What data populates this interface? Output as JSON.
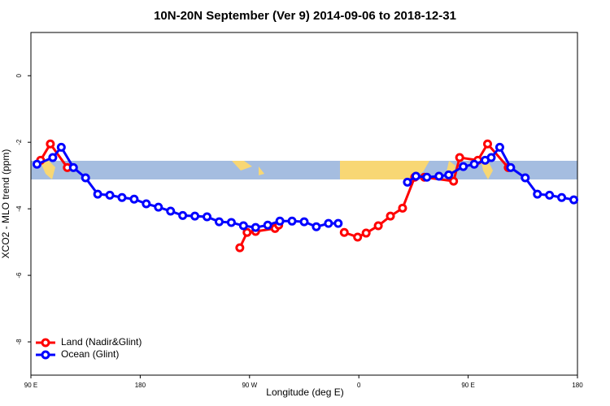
{
  "chart_data": {
    "type": "line",
    "title": "10N-20N September (Ver 9)   2014-09-06 to 2018-12-31",
    "x_label": "Longitude (deg E)",
    "y_label": "XCO2 - MLO trend (ppm)",
    "xlim": [
      90,
      540
    ],
    "xticks": [
      {
        "value": 90,
        "label": "90 E"
      },
      {
        "value": 180,
        "label": "180"
      },
      {
        "value": 270,
        "label": "90 W"
      },
      {
        "value": 360,
        "label": "0"
      },
      {
        "value": 450,
        "label": "90 E"
      },
      {
        "value": 540,
        "label": "180"
      }
    ],
    "ylim": [
      -9,
      1.3
    ],
    "yticks": [
      0,
      -2,
      -4,
      -6,
      -8
    ],
    "legend": "bottom-left",
    "series": [
      {
        "name": "Land (Nadir&Glint)",
        "color": "#ff0000",
        "x": [
          98,
          106,
          120,
          null,
          262,
          268,
          275,
          291,
          294,
          null,
          348,
          359,
          366,
          376,
          386,
          396,
          406,
          414,
          438,
          443,
          458,
          466,
          483
        ],
        "values": [
          -2.54,
          -2.05,
          -2.76,
          null,
          -5.17,
          -4.71,
          -4.68,
          -4.59,
          -4.49,
          null,
          -4.71,
          -4.85,
          -4.73,
          -4.51,
          -4.22,
          -3.98,
          -3.05,
          -3.05,
          -3.17,
          -2.46,
          -2.54,
          -2.05,
          -2.76
        ]
      },
      {
        "name": "Ocean (Glint)",
        "color": "#0000ff",
        "x": [
          95,
          108,
          115,
          125,
          135,
          145,
          155,
          165,
          175,
          185,
          195,
          205,
          215,
          225,
          235,
          245,
          255,
          265,
          275,
          285,
          295,
          305,
          315,
          325,
          335,
          343,
          null,
          400,
          407,
          416,
          426,
          434,
          446,
          455,
          464,
          469,
          476,
          485,
          497,
          507,
          517,
          527,
          537
        ],
        "values": [
          -2.66,
          -2.46,
          -2.15,
          -2.76,
          -3.07,
          -3.56,
          -3.59,
          -3.66,
          -3.71,
          -3.85,
          -3.95,
          -4.07,
          -4.2,
          -4.22,
          -4.24,
          -4.39,
          -4.41,
          -4.51,
          -4.56,
          -4.49,
          -4.37,
          -4.37,
          -4.39,
          -4.54,
          -4.44,
          -4.44,
          null,
          -3.2,
          -3.02,
          -3.05,
          -3.02,
          -2.98,
          -2.73,
          -2.66,
          -2.54,
          -2.46,
          -2.15,
          -2.76,
          -3.07,
          -3.56,
          -3.59,
          -3.66,
          -3.73
        ]
      }
    ]
  }
}
